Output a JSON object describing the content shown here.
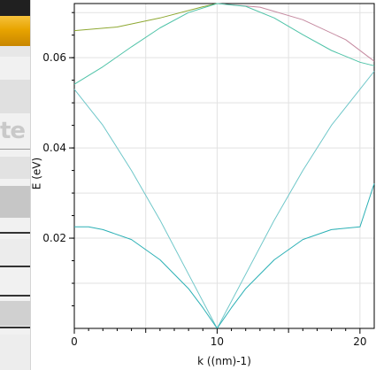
{
  "left_panel": {
    "ghost_label": "te"
  },
  "chart_data": {
    "type": "line",
    "xlabel": "k ((nm)-1)",
    "ylabel": "E (eV)",
    "xlim": [
      0,
      21
    ],
    "ylim": [
      0,
      0.072
    ],
    "x_ticks": [
      0,
      10,
      20
    ],
    "x_tick_labels": [
      "0",
      "10",
      "20"
    ],
    "y_ticks": [
      0.02,
      0.04,
      0.06
    ],
    "y_tick_labels": [
      "0.02",
      "0.04",
      "0.06"
    ],
    "grid": true,
    "series": [
      {
        "color": "#8ea832",
        "x": [
          0,
          3,
          6,
          9,
          10
        ],
        "y": [
          0.066,
          0.0668,
          0.0688,
          0.0713,
          0.072
        ]
      },
      {
        "color": "#c58aa0",
        "x": [
          10,
          13,
          16,
          19,
          21
        ],
        "y": [
          0.072,
          0.0712,
          0.0684,
          0.064,
          0.0592
        ]
      },
      {
        "color": "#4fc3a8",
        "x": [
          0,
          2,
          4,
          6,
          8,
          10,
          12,
          14,
          16,
          18,
          20,
          21
        ],
        "y": [
          0.0541,
          0.058,
          0.0624,
          0.0666,
          0.07,
          0.072,
          0.0714,
          0.0688,
          0.0651,
          0.0616,
          0.059,
          0.0582
        ]
      },
      {
        "color": "#6fc7c9",
        "x": [
          0,
          2,
          4,
          6,
          8,
          10,
          12,
          14,
          16,
          18,
          20,
          21
        ],
        "y": [
          0.053,
          0.045,
          0.035,
          0.024,
          0.012,
          0.0,
          0.012,
          0.024,
          0.035,
          0.045,
          0.053,
          0.057
        ]
      },
      {
        "color": "#2bb0b5",
        "x": [
          0,
          1,
          2,
          4,
          6,
          8,
          9,
          10,
          11,
          12,
          14,
          16,
          18,
          20,
          21
        ],
        "y": [
          0.0225,
          0.0225,
          0.0219,
          0.0197,
          0.0152,
          0.0088,
          0.0046,
          0.0,
          0.0046,
          0.0088,
          0.0152,
          0.0197,
          0.0219,
          0.0225,
          0.0321
        ]
      }
    ]
  }
}
